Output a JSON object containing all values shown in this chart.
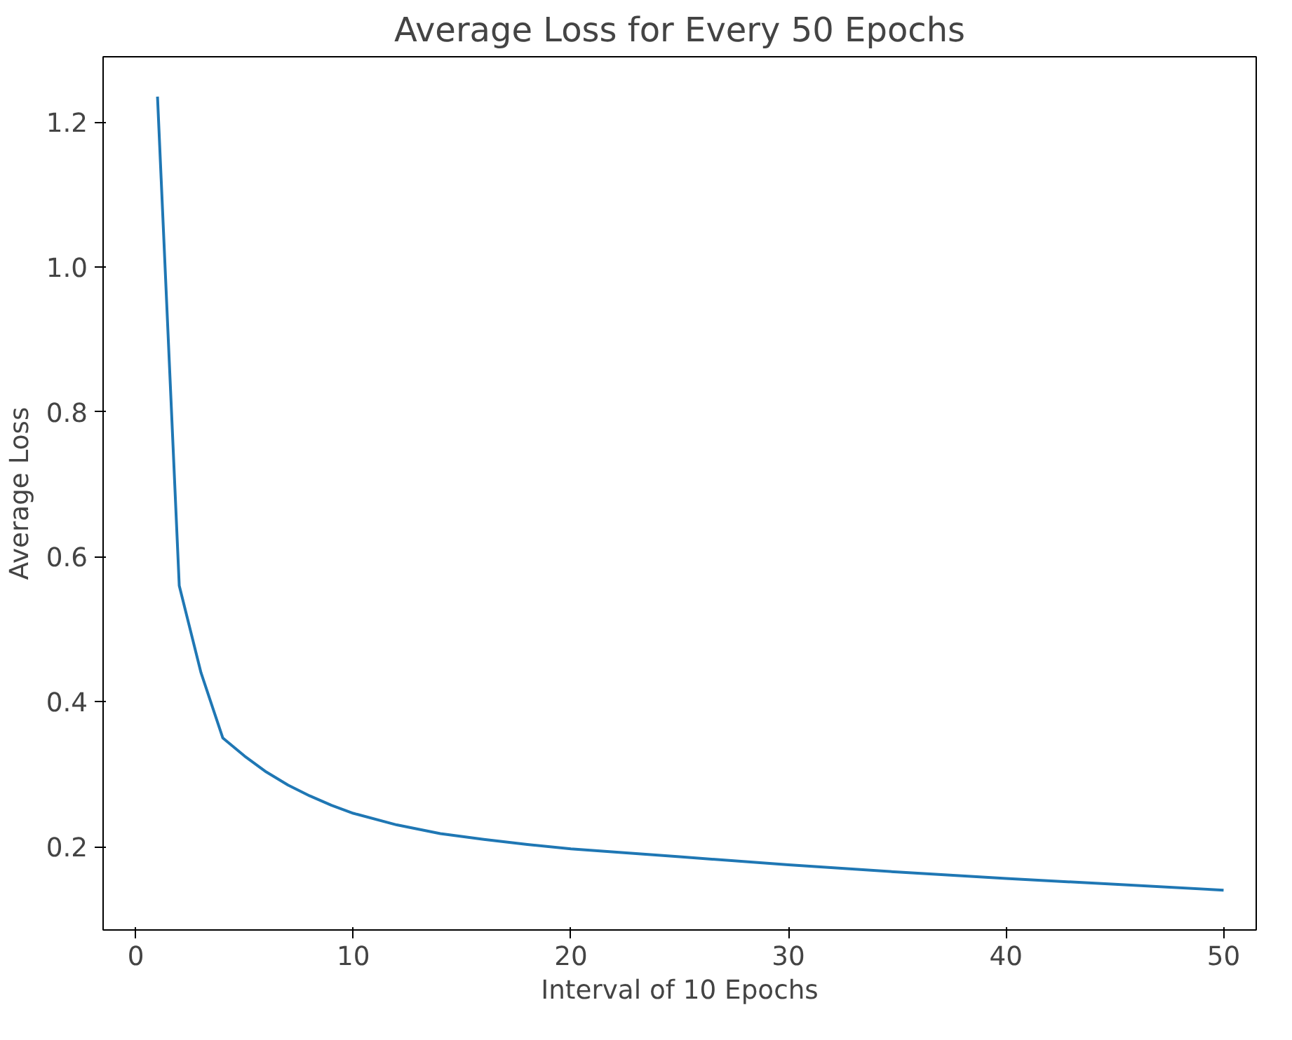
{
  "chart_data": {
    "type": "line",
    "title": "Average Loss for Every 50 Epochs",
    "xlabel": "Interval of 10 Epochs",
    "ylabel": "Average Loss",
    "x": [
      1,
      2,
      3,
      4,
      5,
      6,
      7,
      8,
      9,
      10,
      12,
      14,
      16,
      18,
      20,
      25,
      30,
      35,
      40,
      45,
      50
    ],
    "series": [
      {
        "color": "#1f77b4",
        "values": [
          1.235,
          0.56,
          0.44,
          0.35,
          0.325,
          0.303,
          0.285,
          0.27,
          0.257,
          0.246,
          0.23,
          0.218,
          0.21,
          0.203,
          0.197,
          0.186,
          0.175,
          0.165,
          0.156,
          0.148,
          0.14
        ]
      }
    ],
    "xlim": [
      -1.5,
      51.5
    ],
    "ylim": [
      0.085,
      1.29
    ],
    "xticks": [
      0,
      10,
      20,
      30,
      40,
      50
    ],
    "yticks": [
      0.2,
      0.4,
      0.6,
      0.8,
      {
        "value": 1,
        "label": "1.0"
      },
      1.2
    ],
    "grid": false,
    "marker": "none",
    "line_style": "solid"
  }
}
